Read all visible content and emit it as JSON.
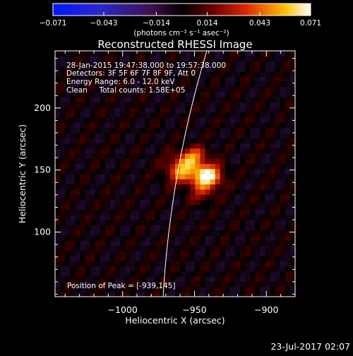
{
  "chart_data": {
    "type": "heatmap",
    "title": "Reconstructed RHESSI Image",
    "xlabel": "Heliocentric X (arcsec)",
    "ylabel": "Heliocentric Y (arcsec)",
    "xlim": [
      -1047,
      -880
    ],
    "ylim": [
      48,
      246
    ],
    "xticks": [
      {
        "value": -1000,
        "label": "−1000"
      },
      {
        "value": -950,
        "label": "−950"
      },
      {
        "value": -900,
        "label": "−900"
      }
    ],
    "yticks": [
      {
        "value": 100,
        "label": "100"
      },
      {
        "value": 150,
        "label": "150"
      },
      {
        "value": 200,
        "label": "200"
      }
    ],
    "colorbar": {
      "min": -0.071,
      "max": 0.071,
      "ticks": [
        {
          "value": -0.071,
          "label": "−0.071"
        },
        {
          "value": -0.043,
          "label": "−0.043"
        },
        {
          "value": -0.014,
          "label": "−0.014"
        },
        {
          "value": 0.014,
          "label": "0.014"
        },
        {
          "value": 0.043,
          "label": "0.043"
        },
        {
          "value": 0.071,
          "label": "0.071"
        }
      ],
      "unit_label": "(photons cm⁻² s⁻¹ asec⁻²)"
    },
    "annotations": [
      "28-Jan-2015 19:47:38.000 to 19:57:38.000",
      "Detectors: 3F 5F 6F 7F 8F 9F, Att 0",
      "Energy Range: 6.0 - 12.0 keV",
      "Clean     Total counts: 1.58E+05"
    ],
    "peak_label": "Position of Peak = [-939,145]",
    "sources": [
      {
        "x": -941,
        "y": 145,
        "peak": 0.071,
        "sigma_x": 7,
        "sigma_y": 7
      },
      {
        "x": -958,
        "y": 151,
        "peak": 0.052,
        "sigma_x": 8,
        "sigma_y": 8
      },
      {
        "x": -950,
        "y": 162,
        "peak": 0.034,
        "sigma_x": 6,
        "sigma_y": 5
      },
      {
        "x": -945,
        "y": 130,
        "peak": 0.018,
        "sigma_x": 6,
        "sigma_y": 5
      }
    ],
    "limb_arcsec": 973,
    "grid": false
  },
  "footer": {
    "date": "23-Jul-2017 02:07"
  }
}
